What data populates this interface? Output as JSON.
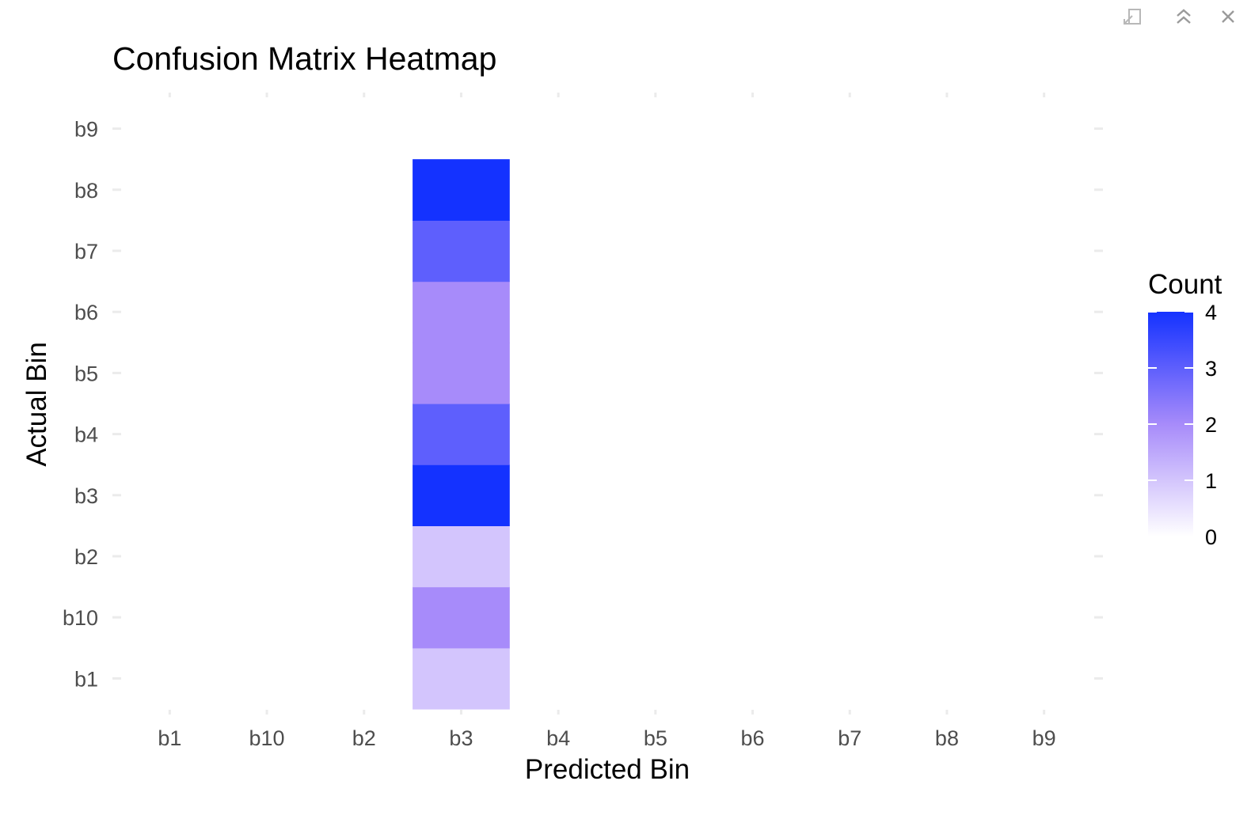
{
  "toolbar": {
    "icons": [
      "export-icon",
      "collapse-icon",
      "close-icon"
    ]
  },
  "chart_data": {
    "type": "heatmap",
    "title": "Confusion Matrix Heatmap",
    "xlabel": "Predicted Bin",
    "ylabel": "Actual Bin",
    "x_categories": [
      "b1",
      "b10",
      "b2",
      "b3",
      "b4",
      "b5",
      "b6",
      "b7",
      "b8",
      "b9"
    ],
    "y_categories": [
      "b1",
      "b10",
      "b2",
      "b3",
      "b4",
      "b5",
      "b6",
      "b7",
      "b8",
      "b9"
    ],
    "cells": [
      {
        "x": "b3",
        "y": "b1",
        "value": 1
      },
      {
        "x": "b3",
        "y": "b10",
        "value": 2
      },
      {
        "x": "b3",
        "y": "b2",
        "value": 1
      },
      {
        "x": "b3",
        "y": "b3",
        "value": 4
      },
      {
        "x": "b3",
        "y": "b4",
        "value": 3
      },
      {
        "x": "b3",
        "y": "b5",
        "value": 2
      },
      {
        "x": "b3",
        "y": "b6",
        "value": 2
      },
      {
        "x": "b3",
        "y": "b7",
        "value": 3
      },
      {
        "x": "b3",
        "y": "b8",
        "value": 4
      }
    ],
    "color_scale": {
      "low": "#ffffff",
      "mid": "#a78bfa",
      "high": "#1432ff",
      "domain": [
        0,
        4
      ]
    },
    "legend": {
      "title": "Count",
      "ticks": [
        0,
        1,
        2,
        3,
        4
      ],
      "position": "right"
    },
    "grid": false
  }
}
